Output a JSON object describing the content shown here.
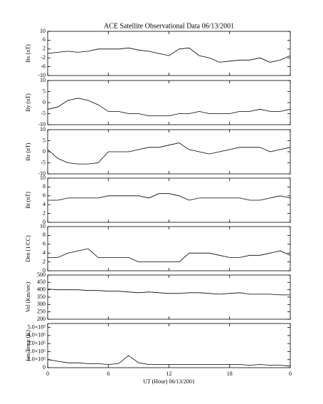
{
  "chart_data": [
    {
      "type": "line",
      "title": "ACE Satellite Observational Data   06/13/2001",
      "ylabel": "Bx (nT)",
      "xlim": [
        0,
        24
      ],
      "ylim": [
        -10,
        10
      ],
      "yticks": [
        10,
        6,
        2,
        -2,
        -6,
        -10
      ],
      "x": [
        0,
        1,
        2,
        3,
        4,
        5,
        6,
        7,
        8,
        9,
        10,
        11,
        12,
        13,
        14,
        15,
        16,
        17,
        18,
        19,
        20,
        21,
        22,
        23,
        24
      ],
      "series": [
        {
          "color": "#000000",
          "values": [
            0,
            0.5,
            1,
            0.5,
            1,
            2,
            2,
            2,
            2.5,
            1.5,
            1,
            0,
            -1,
            2,
            2.5,
            -1,
            -2,
            -4,
            -3.5,
            -3,
            -3,
            -2,
            -4,
            -3,
            -1
          ]
        }
      ]
    },
    {
      "type": "line",
      "ylabel": "By (nT)",
      "xlim": [
        0,
        24
      ],
      "ylim": [
        -10,
        10
      ],
      "yticks": [
        10,
        5,
        0,
        -5,
        -10
      ],
      "x": [
        0,
        1,
        2,
        3,
        4,
        5,
        6,
        7,
        8,
        9,
        10,
        11,
        12,
        13,
        14,
        15,
        16,
        17,
        18,
        19,
        20,
        21,
        22,
        23,
        24
      ],
      "series": [
        {
          "color": "#000000",
          "values": [
            -3,
            -2,
            1,
            2,
            1,
            -1,
            -4,
            -4,
            -5,
            -5,
            -6,
            -6,
            -6,
            -5,
            -5,
            -4,
            -5,
            -5,
            -5,
            -4,
            -4,
            -3,
            -4,
            -4,
            -3
          ]
        }
      ]
    },
    {
      "type": "line",
      "ylabel": "Bz (nT)",
      "xlim": [
        0,
        24
      ],
      "ylim": [
        -10,
        10
      ],
      "yticks": [
        10,
        5,
        0,
        -5,
        -10
      ],
      "x": [
        0,
        1,
        2,
        3,
        4,
        5,
        6,
        7,
        8,
        9,
        10,
        11,
        12,
        13,
        14,
        15,
        16,
        17,
        18,
        19,
        20,
        21,
        22,
        23,
        24
      ],
      "series": [
        {
          "color": "#000000",
          "values": [
            1,
            -3,
            -5,
            -5.5,
            -5.5,
            -5,
            0,
            0,
            0,
            1,
            2,
            2,
            3,
            4,
            1,
            0,
            -1,
            0,
            1,
            2,
            2,
            2,
            0,
            1,
            2
          ]
        }
      ]
    },
    {
      "type": "line",
      "ylabel": "Bt (nT)",
      "xlim": [
        0,
        24
      ],
      "ylim": [
        0,
        10
      ],
      "yticks": [
        0,
        2,
        4,
        6,
        8,
        10
      ],
      "x": [
        0,
        1,
        2,
        3,
        4,
        5,
        6,
        7,
        8,
        9,
        10,
        11,
        12,
        13,
        14,
        15,
        16,
        17,
        18,
        19,
        20,
        21,
        22,
        23,
        24
      ],
      "series": [
        {
          "color": "#000000",
          "values": [
            5,
            5,
            5.5,
            5.5,
            5.5,
            5.5,
            6,
            6,
            6,
            6,
            5.5,
            6.5,
            6.5,
            6,
            5,
            5.5,
            5.5,
            5.5,
            5.5,
            5.5,
            5,
            5,
            5.5,
            6,
            5.5
          ]
        }
      ]
    },
    {
      "type": "line",
      "ylabel": "Den (1/CC)",
      "xlim": [
        0,
        24
      ],
      "ylim": [
        0,
        10
      ],
      "yticks": [
        0,
        2,
        4,
        6,
        8,
        10
      ],
      "x": [
        0,
        1,
        2,
        3,
        4,
        5,
        6,
        7,
        8,
        9,
        10,
        11,
        12,
        13,
        14,
        15,
        16,
        17,
        18,
        19,
        20,
        21,
        22,
        23,
        24
      ],
      "series": [
        {
          "color": "#000000",
          "values": [
            3,
            3,
            4,
            4.5,
            5,
            3,
            3,
            3,
            3,
            2,
            2,
            2,
            2,
            2,
            4,
            4,
            4,
            3.5,
            3,
            3,
            3.5,
            3.5,
            4,
            4.5,
            3.5
          ]
        }
      ]
    },
    {
      "type": "line",
      "ylabel": "Vel (Km/sec)",
      "xlim": [
        0,
        24
      ],
      "ylim": [
        200,
        500
      ],
      "yticks": [
        200,
        250,
        300,
        350,
        400,
        450,
        500
      ],
      "x": [
        0,
        1,
        2,
        3,
        4,
        5,
        6,
        7,
        8,
        9,
        10,
        11,
        12,
        13,
        14,
        15,
        16,
        17,
        18,
        19,
        20,
        21,
        22,
        23,
        24
      ],
      "series": [
        {
          "color": "#000000",
          "values": [
            405,
            400,
            400,
            400,
            395,
            395,
            390,
            390,
            385,
            380,
            385,
            380,
            375,
            375,
            380,
            380,
            375,
            370,
            375,
            380,
            370,
            370,
            370,
            365,
            365
          ]
        }
      ]
    },
    {
      "type": "line",
      "ylabel": "Ion Temp (K)",
      "xlabel": "UT (Hour)   06/13/2001",
      "xlim": [
        0,
        24
      ],
      "ylim": [
        0,
        550000
      ],
      "yticks": [
        0,
        {
          "value": 100000,
          "label": "1.0×10⁵"
        },
        {
          "value": 200000,
          "label": "2.0×10⁵"
        },
        {
          "value": 300000,
          "label": "3.0×10⁵"
        },
        {
          "value": 400000,
          "label": "4.0×10⁵"
        },
        {
          "value": 500000,
          "label": "5.0×10⁵"
        }
      ],
      "xticks": [
        0,
        6,
        12,
        18,
        {
          "value": 24,
          "label": "0"
        }
      ],
      "x": [
        0,
        1,
        2,
        3,
        4,
        5,
        6,
        7,
        8,
        9,
        10,
        11,
        12,
        13,
        14,
        15,
        16,
        17,
        18,
        19,
        20,
        21,
        22,
        23,
        24
      ],
      "series": [
        {
          "color": "#000000",
          "values": [
            100000,
            80000,
            60000,
            60000,
            50000,
            50000,
            40000,
            50000,
            150000,
            60000,
            40000,
            40000,
            40000,
            40000,
            40000,
            40000,
            40000,
            40000,
            40000,
            40000,
            30000,
            40000,
            30000,
            30000,
            20000
          ]
        }
      ]
    }
  ]
}
